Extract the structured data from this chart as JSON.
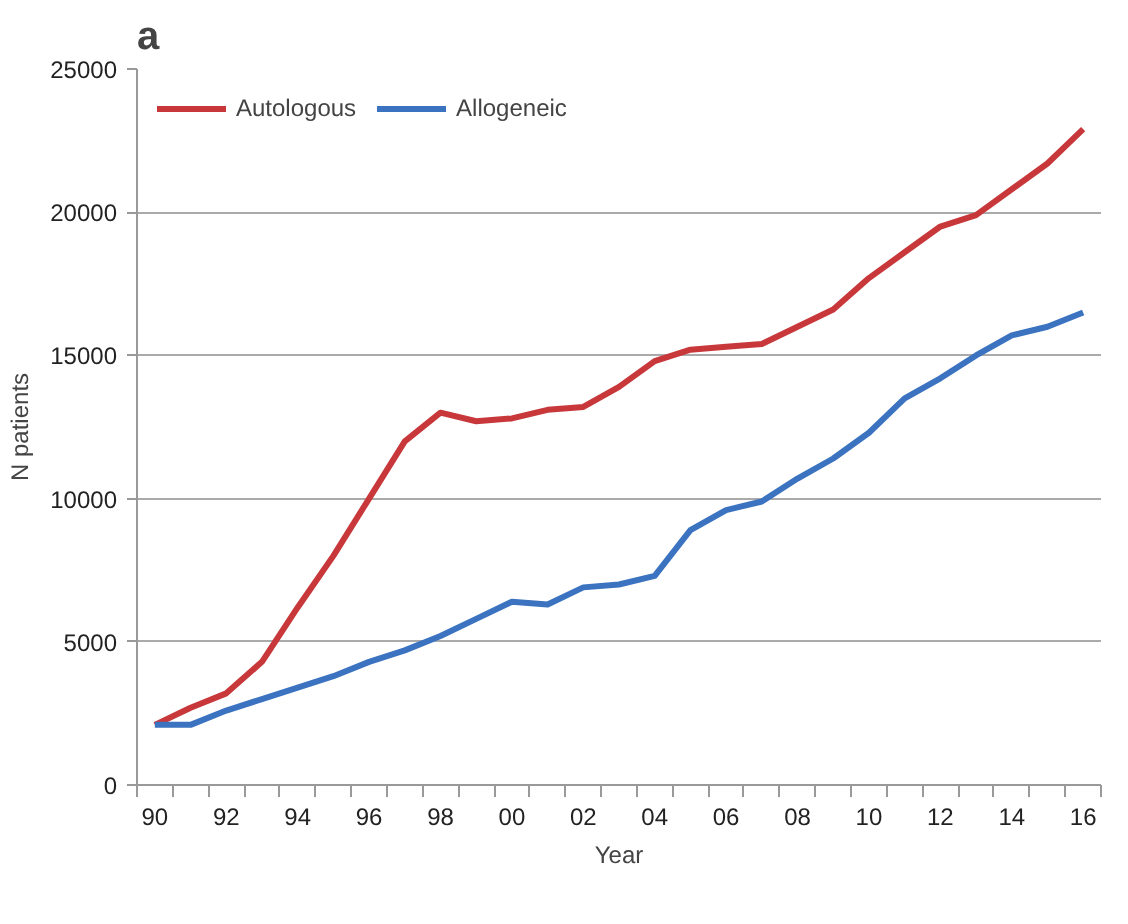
{
  "chart_data": {
    "type": "line",
    "title": "a",
    "xlabel": "Year",
    "ylabel": "N patients",
    "categories": [
      "90",
      null,
      "92",
      null,
      "94",
      null,
      "96",
      null,
      "98",
      null,
      "00",
      null,
      "02",
      null,
      "04",
      null,
      "06",
      null,
      "08",
      null,
      "10",
      null,
      "12",
      null,
      "14",
      null,
      "16"
    ],
    "series": [
      {
        "name": "Autologous",
        "color": "#c8383b",
        "values": [
          2100,
          2700,
          3200,
          4300,
          6200,
          8000,
          10000,
          12000,
          13000,
          12700,
          12800,
          13100,
          13200,
          13900,
          14800,
          15200,
          15300,
          15400,
          16000,
          16600,
          17700,
          18600,
          19500,
          19900,
          20800,
          21700,
          22900
        ]
      },
      {
        "name": "Allogeneic",
        "color": "#3b73c0",
        "values": [
          2100,
          2100,
          2600,
          3000,
          3400,
          3800,
          4300,
          4700,
          5200,
          5800,
          6400,
          6300,
          6900,
          7000,
          7300,
          8900,
          9600,
          9900,
          10700,
          11400,
          12300,
          13500,
          14200,
          15000,
          15700,
          16000,
          16500
        ]
      }
    ],
    "ylim": [
      0,
      25000
    ],
    "yticks": [
      0,
      5000,
      10000,
      15000,
      20000,
      25000
    ],
    "grid": "y",
    "legend": "top left",
    "marker": "none",
    "line_style": "solid"
  }
}
